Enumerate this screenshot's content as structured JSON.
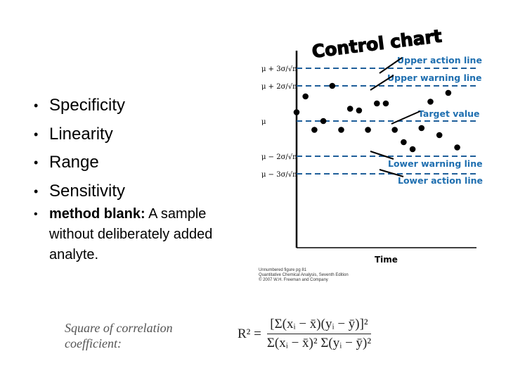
{
  "bullets": [
    "Specificity",
    "Linearity",
    "Range",
    "Sensitivity"
  ],
  "method_blank": {
    "term": "method blank:",
    "definition": " A sample without deliberately added analyte."
  },
  "chart_data": {
    "type": "scatter",
    "title": "Control chart",
    "xlabel": "Time",
    "ylabel": "",
    "y_units": "sigma/sqrt(n) from mu",
    "ylim": [
      -3.5,
      4
    ],
    "y_ticks": [
      {
        "value": 3,
        "label": "μ + 3σ/√n"
      },
      {
        "value": 2,
        "label": "μ + 2σ/√n"
      },
      {
        "value": 0,
        "label": "μ"
      },
      {
        "value": -2,
        "label": "μ − 2σ/√n"
      },
      {
        "value": -3,
        "label": "μ − 3σ/√n"
      }
    ],
    "lines": [
      {
        "value": 3,
        "label": "Upper action line"
      },
      {
        "value": 2,
        "label": "Upper warning line"
      },
      {
        "value": 0,
        "label": "Target value"
      },
      {
        "value": -2,
        "label": "Lower warning line"
      },
      {
        "value": -3,
        "label": "Lower action line"
      }
    ],
    "x": [
      1,
      2,
      3,
      4,
      5,
      6,
      7,
      8,
      9,
      10,
      11,
      12,
      13,
      14,
      15,
      16,
      17,
      18,
      19
    ],
    "y": [
      0.5,
      1.4,
      -0.5,
      0,
      2,
      -0.5,
      0.7,
      0.6,
      -0.5,
      1,
      1,
      -0.5,
      -1.2,
      -1.6,
      -0.4,
      1.1,
      -0.8,
      1.6,
      -1.5
    ],
    "line_color": "#1f5f9a",
    "label_color": "#1f6fb0"
  },
  "credit": [
    "Unnumbered figure pg 81",
    "Quantitative Chemical Analysis, Seventh Edition",
    "© 2007 W.H. Freeman and Company"
  ],
  "formula": {
    "label_line1": "Square of correlation",
    "label_line2": "coefficient:",
    "lhs": "R² =",
    "numerator": "[Σ(xᵢ − x̄)(yᵢ − ȳ)]²",
    "denominator": "Σ(xᵢ − x̄)² Σ(yᵢ − ȳ)²"
  }
}
